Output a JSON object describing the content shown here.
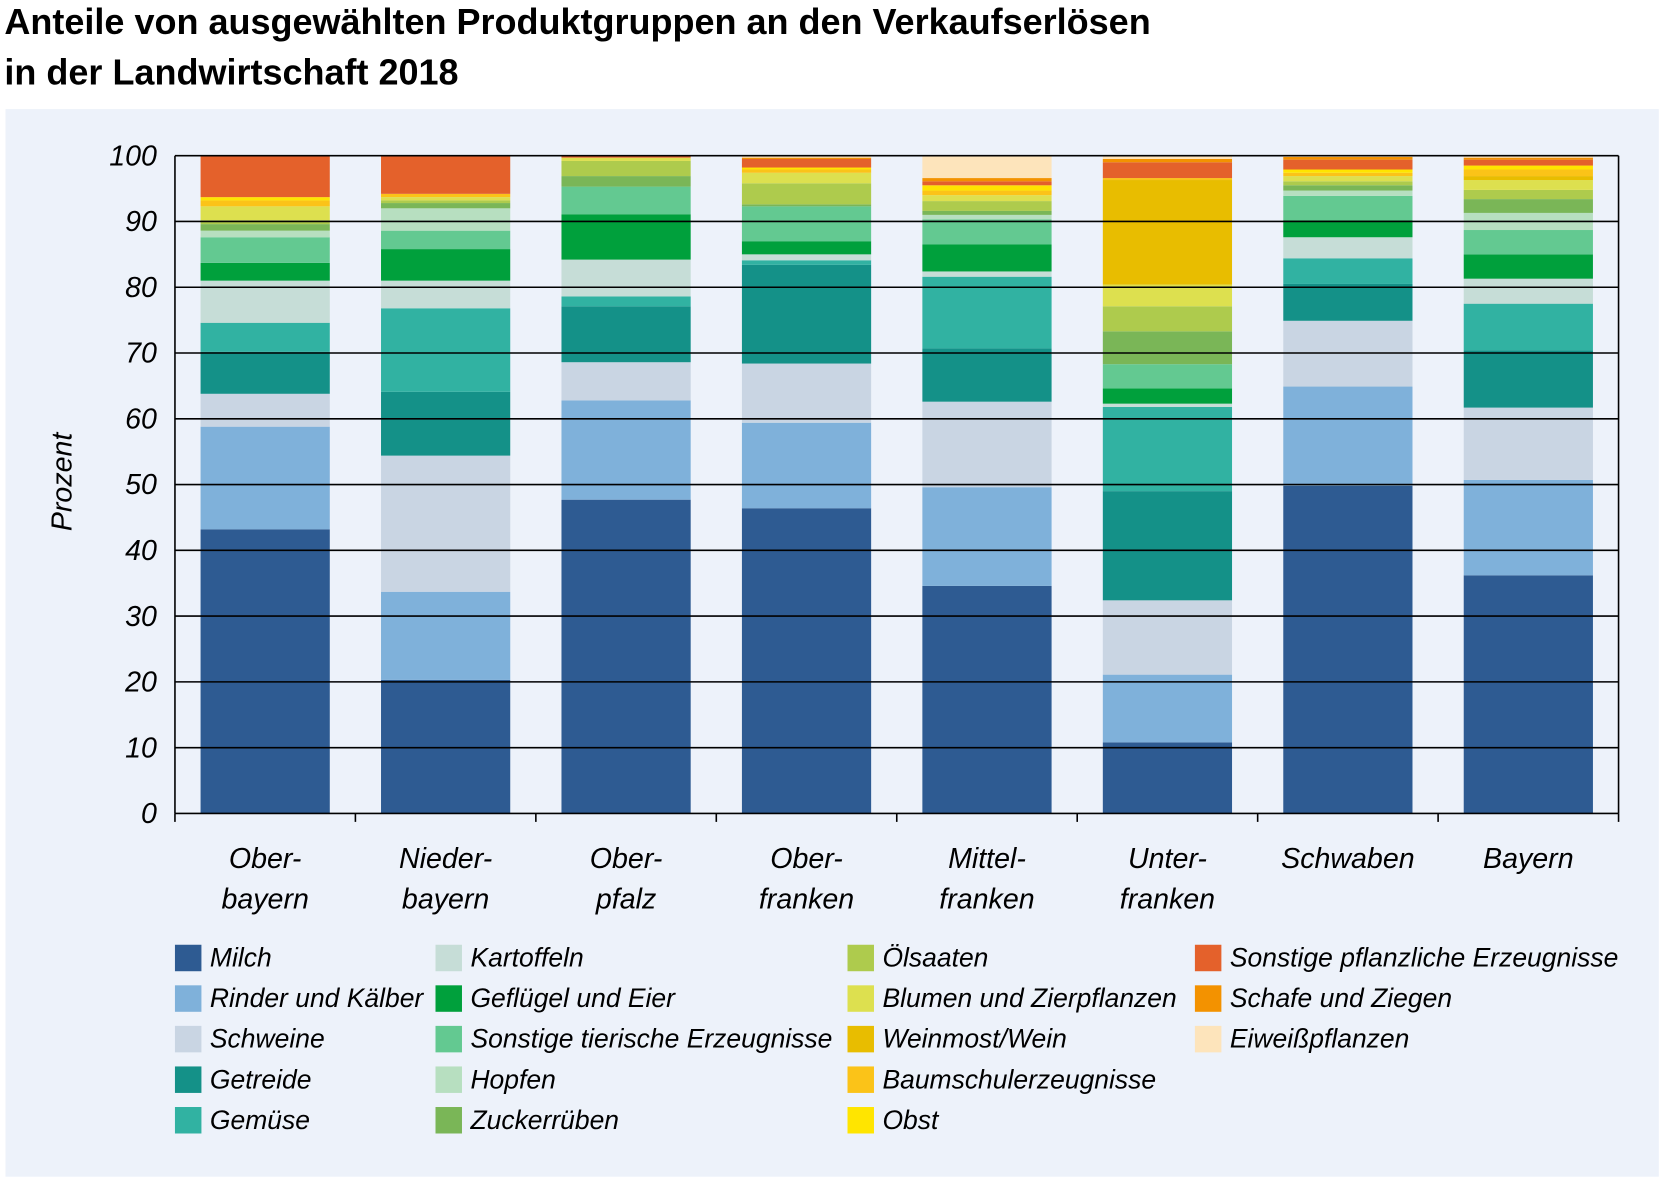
{
  "chart_data": {
    "type": "stacked_bar",
    "title": [
      "Anteile von ausgewählten Produktgruppen an den Verkaufserlösen",
      "in der Landwirtschaft 2018"
    ],
    "y_label": "Prozent",
    "categories": [
      "Ober-\nbayern",
      "Nieder-\nbayern",
      "Ober-\npfalz",
      "Ober-\nfranken",
      "Mittel-\nfranken",
      "Unter-\nfranken",
      "Schwaben",
      "Bayern"
    ],
    "ylim": [
      0,
      100
    ],
    "yticks": [
      0,
      10,
      20,
      30,
      40,
      50,
      60,
      70,
      80,
      90,
      100
    ],
    "grid": true,
    "series": [
      {
        "name": "Milch",
        "color": "#2e5b92",
        "values": [
          43.2,
          20.3,
          47.7,
          46.4,
          34.6,
          10.8,
          49.8,
          36.2
        ]
      },
      {
        "name": "Rinder und Kälber",
        "color": "#7fb1da",
        "values": [
          15.6,
          13.4,
          15.1,
          13.0,
          15.0,
          10.3,
          15.1,
          14.5
        ]
      },
      {
        "name": "Schweine",
        "color": "#c9d5e3",
        "values": [
          5.0,
          20.7,
          5.8,
          9.0,
          13.0,
          11.3,
          10.0,
          11.0
        ]
      },
      {
        "name": "Getreide",
        "color": "#149188",
        "values": [
          6.4,
          9.7,
          8.5,
          15.0,
          8.1,
          16.6,
          5.6,
          8.7
        ]
      },
      {
        "name": "Gemüse",
        "color": "#31b2a2",
        "values": [
          4.4,
          12.7,
          1.5,
          0.7,
          10.9,
          12.8,
          3.9,
          7.1
        ]
      },
      {
        "name": "Kartoffeln",
        "color": "#c6ddd7",
        "values": [
          6.4,
          4.2,
          5.6,
          0.9,
          0.8,
          0.5,
          3.2,
          3.8
        ]
      },
      {
        "name": "Geflügel und Eier",
        "color": "#00a03c",
        "values": [
          2.7,
          4.8,
          6.9,
          2.0,
          4.1,
          2.3,
          2.6,
          3.7
        ]
      },
      {
        "name": "Sonstige tierische Erzeugnisse",
        "color": "#63c991",
        "values": [
          3.9,
          2.8,
          4.2,
          5.3,
          3.8,
          3.7,
          3.7,
          3.7
        ]
      },
      {
        "name": "Hopfen",
        "color": "#b7dfc0",
        "values": [
          1.0,
          3.4,
          0,
          0,
          0.7,
          0,
          0.8,
          2.6
        ]
      },
      {
        "name": "Zuckerrüben",
        "color": "#7ab657",
        "values": [
          1.0,
          0.8,
          1.6,
          0.3,
          0.6,
          5.0,
          0.8,
          2.1
        ]
      },
      {
        "name": "Ölsaaten",
        "color": "#aecb4d",
        "values": [
          0.6,
          0.4,
          2.3,
          3.2,
          1.5,
          3.8,
          0.6,
          1.4
        ]
      },
      {
        "name": "Blumen und Zierpflanzen",
        "color": "#dde04f",
        "values": [
          2.1,
          0.5,
          0.5,
          1.6,
          0.9,
          3.3,
          0.8,
          1.5
        ]
      },
      {
        "name": "Weinmost/Wein",
        "color": "#e8bd00",
        "values": [
          0,
          0,
          0,
          0,
          0,
          15.9,
          0,
          0.6
        ]
      },
      {
        "name": "Baumschulerzeugnisse",
        "color": "#fbc318",
        "values": [
          0.9,
          0.5,
          0,
          0.5,
          0.7,
          0.3,
          0.5,
          1.0
        ]
      },
      {
        "name": "Obst",
        "color": "#ffe500",
        "values": [
          0.5,
          0,
          0,
          0.3,
          0.8,
          0,
          0.5,
          0.6
        ]
      },
      {
        "name": "Sonstige pflanzliche Erzeugnisse",
        "color": "#e4612b",
        "values": [
          6.3,
          5.8,
          0.3,
          1.3,
          0.6,
          2.4,
          1.5,
          0.9
        ]
      },
      {
        "name": "Schafe und Ziegen",
        "color": "#f39200",
        "values": [
          0,
          0,
          0,
          0.2,
          0.5,
          0.5,
          0.4,
          0.3
        ]
      },
      {
        "name": "Eiweißpflanzen",
        "color": "#fde4bb",
        "values": [
          0,
          0,
          0,
          0.3,
          3.4,
          0.5,
          0.2,
          0.3
        ]
      }
    ]
  }
}
